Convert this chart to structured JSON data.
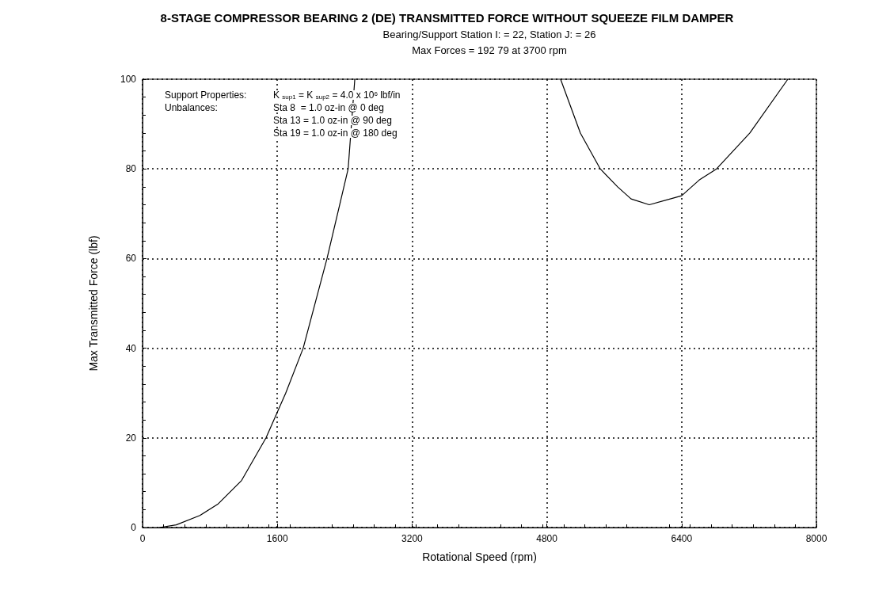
{
  "chart_data": {
    "type": "line",
    "title": "8-STAGE COMPRESSOR BEARING 2 (DE) TRANSMITTED FORCE WITHOUT SQUEEZE FILM DAMPER",
    "subtitle": "Bearing/Support Station I: = 22, Station J: = 26\nMax Forces = 192 79 at 3700 rpm",
    "xlabel": "Rotational Speed (rpm)",
    "ylabel": "Max Transmitted Force (lbf)",
    "annotations": [
      "Support Properties:",
      "Unbalances:",
      "K $_{sup1}$ = K $_{sup2}$ = 4.0 x 10$^{6}$ lbf/in",
      "Sta 8  = 1.0 oz-in @ 0 deg",
      "Sta 13 = 1.0 oz-in @ 90 deg",
      "Sta 19 = 1.0 oz-in @ 180 deg"
    ],
    "series": [
      {
        "color": "#000000",
        "x": [
          200,
          400,
          681,
          893,
          1176,
          1466,
          1700,
          1907,
          2190,
          2441,
          2520,
          3700,
          4963,
          5198,
          5434,
          5640,
          5800,
          6016,
          6400,
          6608,
          6815,
          7210,
          7661
        ],
        "values": [
          0,
          0.6,
          2.7,
          5.2,
          10.5,
          20,
          30,
          40,
          60,
          80,
          100,
          null,
          100,
          88,
          80,
          76,
          73.3,
          72,
          74,
          77.5,
          80,
          88,
          100
        ]
      }
    ],
    "xlim": [
      0,
      8000
    ],
    "xticks": [
      0,
      1600,
      3200,
      4800,
      6400,
      8000
    ],
    "ylim": [
      0,
      100
    ],
    "yticks": [
      0,
      20,
      40,
      60,
      80,
      100
    ],
    "grid": true,
    "marker": "none",
    "line_style": "solid"
  }
}
